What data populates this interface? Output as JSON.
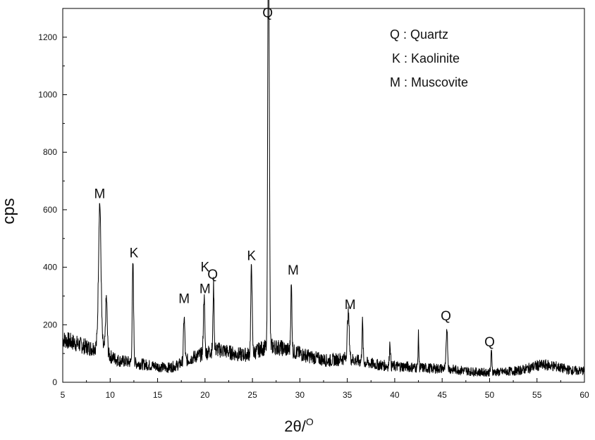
{
  "chart_data": {
    "type": "line",
    "xlabel": "2θ/",
    "xlabel_sup": "O",
    "ylabel": "cps",
    "xlim": [
      5,
      60
    ],
    "ylim": [
      0,
      1300
    ],
    "xticks": [
      5,
      10,
      15,
      20,
      25,
      30,
      35,
      40,
      45,
      50,
      55,
      60
    ],
    "yticks": [
      0,
      200,
      400,
      600,
      800,
      1000,
      1200
    ],
    "grid": false,
    "legend_position": "top-right",
    "legend": [
      {
        "symbol": "Q",
        "text": "Q : Quartz"
      },
      {
        "symbol": "K",
        "text": "K : Kaolinite"
      },
      {
        "symbol": "M",
        "text": "M : Muscovite"
      }
    ],
    "baseline": [
      [
        5,
        150
      ],
      [
        6,
        140
      ],
      [
        7,
        128
      ],
      [
        8,
        118
      ],
      [
        9,
        130
      ],
      [
        10,
        90
      ],
      [
        11,
        75
      ],
      [
        12,
        70
      ],
      [
        13,
        65
      ],
      [
        14,
        60
      ],
      [
        15,
        55
      ],
      [
        16,
        50
      ],
      [
        17,
        58
      ],
      [
        18,
        75
      ],
      [
        19,
        90
      ],
      [
        20,
        100
      ],
      [
        21,
        115
      ],
      [
        22,
        110
      ],
      [
        23,
        100
      ],
      [
        24,
        95
      ],
      [
        25,
        100
      ],
      [
        26,
        118
      ],
      [
        27,
        125
      ],
      [
        28,
        120
      ],
      [
        29,
        110
      ],
      [
        30,
        100
      ],
      [
        31,
        90
      ],
      [
        32,
        82
      ],
      [
        33,
        75
      ],
      [
        34,
        80
      ],
      [
        35,
        85
      ],
      [
        36,
        75
      ],
      [
        37,
        68
      ],
      [
        38,
        62
      ],
      [
        39,
        58
      ],
      [
        40,
        55
      ],
      [
        41,
        55
      ],
      [
        42,
        52
      ],
      [
        43,
        50
      ],
      [
        44,
        48
      ],
      [
        45,
        48
      ],
      [
        46,
        45
      ],
      [
        47,
        42
      ],
      [
        48,
        38
      ],
      [
        49,
        35
      ],
      [
        50,
        35
      ],
      [
        51,
        35
      ],
      [
        52,
        38
      ],
      [
        53,
        40
      ],
      [
        54,
        48
      ],
      [
        55,
        58
      ],
      [
        56,
        60
      ],
      [
        57,
        55
      ],
      [
        58,
        45
      ],
      [
        59,
        40
      ],
      [
        60,
        40
      ]
    ],
    "peaks": [
      {
        "x": 8.9,
        "y": 625,
        "w": 0.18
      },
      {
        "x": 9.6,
        "y": 295,
        "w": 0.12
      },
      {
        "x": 12.4,
        "y": 415,
        "w": 0.1
      },
      {
        "x": 17.8,
        "y": 228,
        "w": 0.1
      },
      {
        "x": 19.9,
        "y": 300,
        "w": 0.1
      },
      {
        "x": 20.9,
        "y": 340,
        "w": 0.08
      },
      {
        "x": 24.9,
        "y": 410,
        "w": 0.1
      },
      {
        "x": 26.65,
        "y": 1235,
        "w": 0.08
      },
      {
        "x": 26.75,
        "y": 1020,
        "w": 0.09
      },
      {
        "x": 29.1,
        "y": 335,
        "w": 0.09
      },
      {
        "x": 35.1,
        "y": 240,
        "w": 0.14
      },
      {
        "x": 36.6,
        "y": 210,
        "w": 0.08
      },
      {
        "x": 39.5,
        "y": 140,
        "w": 0.08
      },
      {
        "x": 42.5,
        "y": 165,
        "w": 0.06
      },
      {
        "x": 45.5,
        "y": 195,
        "w": 0.1
      },
      {
        "x": 50.2,
        "y": 105,
        "w": 0.08
      }
    ],
    "annotations": [
      {
        "text": "M",
        "x": 8.9,
        "y": 640
      },
      {
        "text": "K",
        "x": 12.5,
        "y": 435
      },
      {
        "text": "M",
        "x": 17.8,
        "y": 275
      },
      {
        "text": "K",
        "x": 20.0,
        "y": 385
      },
      {
        "text": "M",
        "x": 20.0,
        "y": 310
      },
      {
        "text": "Q",
        "x": 20.8,
        "y": 360
      },
      {
        "text": "K",
        "x": 24.9,
        "y": 425
      },
      {
        "text": "Q",
        "x": 26.6,
        "y": 1270
      },
      {
        "text": "M",
        "x": 29.3,
        "y": 375
      },
      {
        "text": "M",
        "x": 35.3,
        "y": 255
      },
      {
        "text": "Q",
        "x": 45.4,
        "y": 215
      },
      {
        "text": "Q",
        "x": 50.0,
        "y": 125
      }
    ]
  }
}
